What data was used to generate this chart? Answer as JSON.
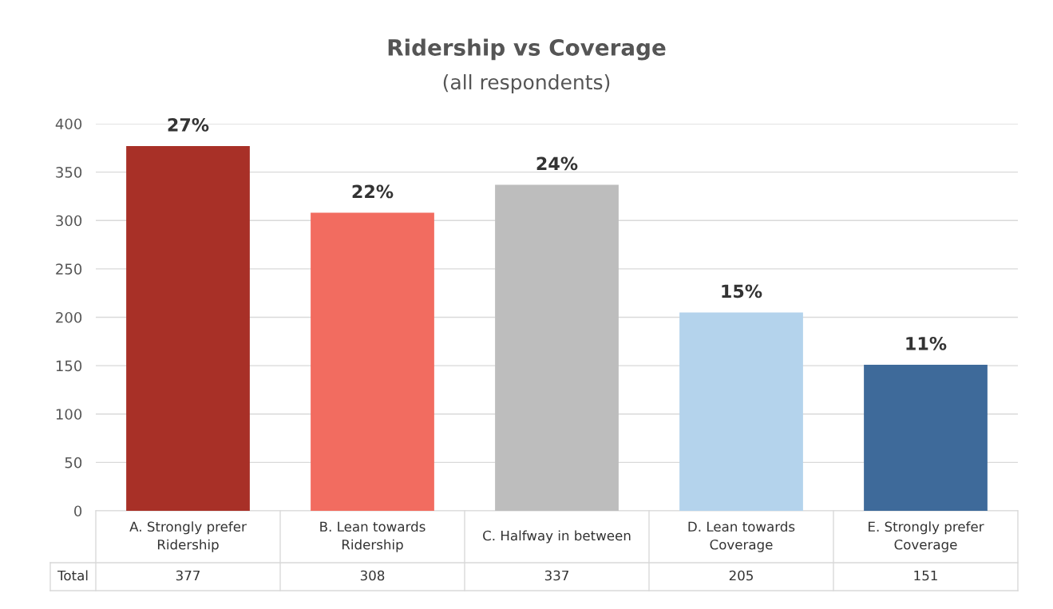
{
  "chart_data": {
    "type": "bar",
    "title": "Ridership vs Coverage",
    "subtitle": "(all respondents)",
    "categories": [
      "A. Strongly prefer Ridership",
      "B. Lean towards Ridership",
      "C. Halfway in between",
      "D. Lean towards Coverage",
      "E. Strongly prefer Coverage"
    ],
    "values": [
      377,
      308,
      337,
      205,
      151
    ],
    "colors": [
      "#a83027",
      "#f26c60",
      "#bdbdbd",
      "#b4d3ec",
      "#3e6a9a"
    ],
    "value_labels": [
      "377",
      "308",
      "337",
      "205",
      "151"
    ],
    "annotations": [
      "Total",
      {
        "text": "27%",
        "x": "A. Strongly prefer Ridership",
        "y": 377
      },
      {
        "text": "22%",
        "x": "B. Lean towards Ridership",
        "y": 308
      },
      {
        "text": "24%",
        "x": "C. Halfway in between",
        "y": 337
      },
      {
        "text": "15%",
        "x": "D. Lean towards Coverage",
        "y": 205
      },
      {
        "text": "11%",
        "x": "E. Strongly prefer Coverage",
        "y": 151
      }
    ],
    "ylim": [
      0,
      400
    ],
    "yticks": [
      0,
      50,
      100,
      150,
      200,
      250,
      300,
      350,
      400
    ],
    "grid": "y"
  }
}
